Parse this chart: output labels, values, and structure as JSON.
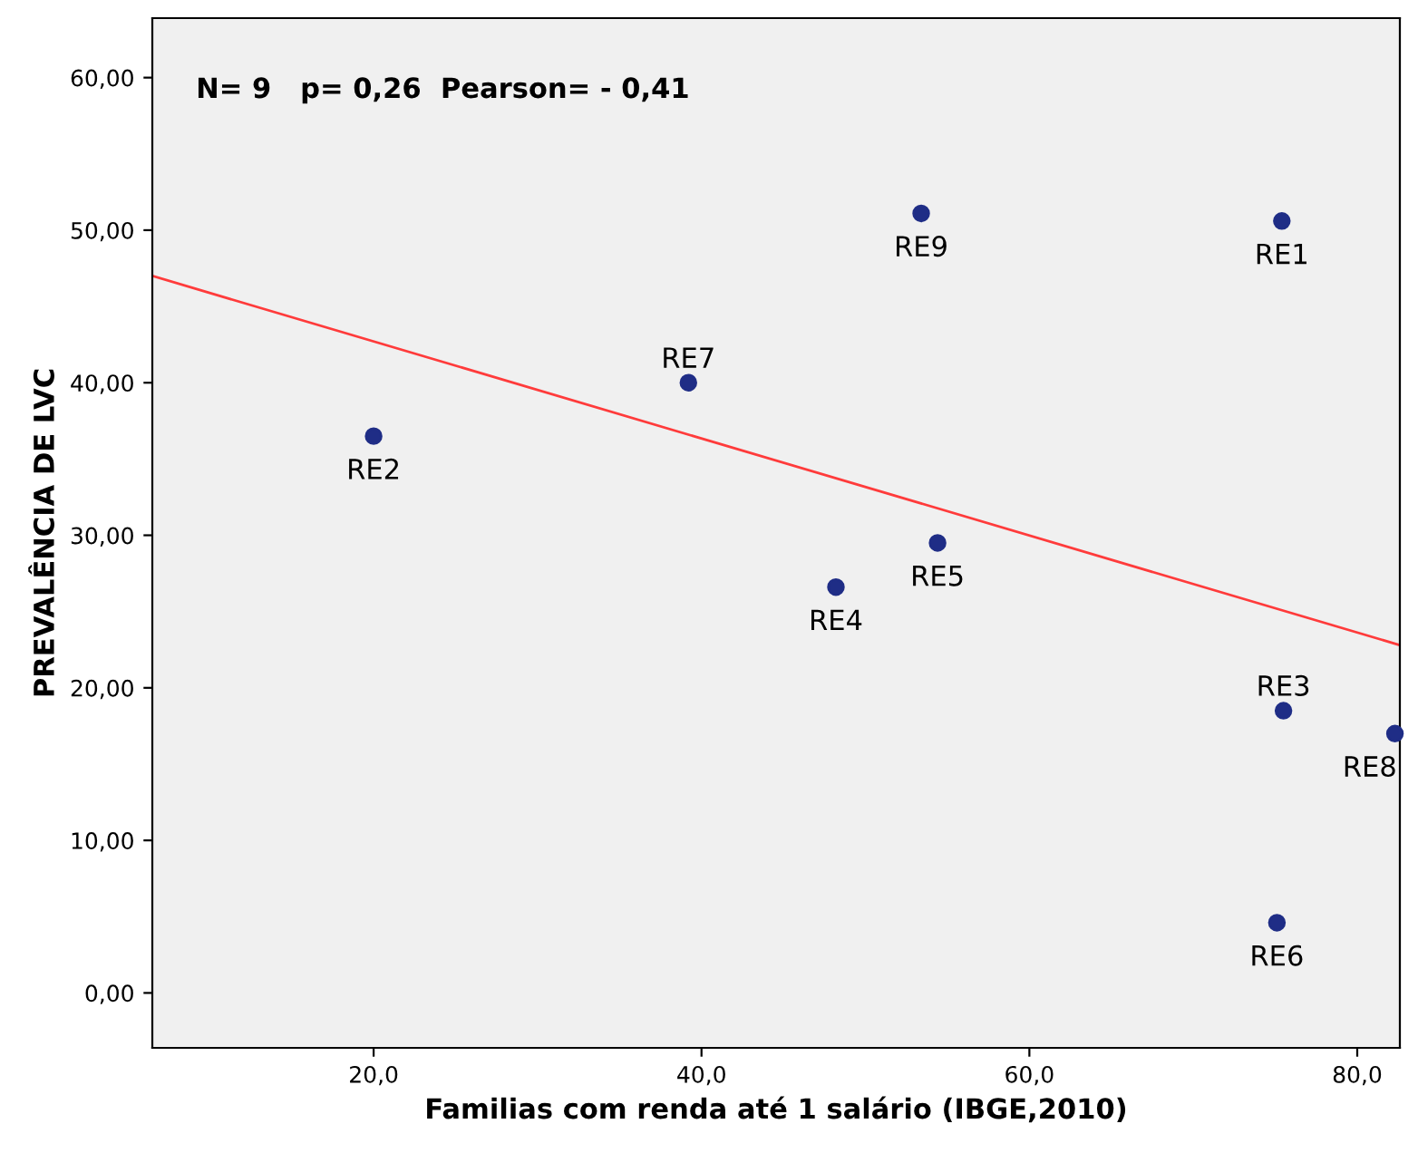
{
  "chart_data": {
    "type": "scatter",
    "xlabel": "Familias com renda até 1 salário (IBGE,2010)",
    "ylabel": "PREVALÊNCIA DE LVC",
    "series": [
      {
        "color": "#1f2d86",
        "marker": "circle",
        "x": [
          75.4,
          20.0,
          75.5,
          48.2,
          54.4,
          75.1,
          39.2,
          82.3,
          53.4
        ],
        "values": [
          50.6,
          36.5,
          18.5,
          26.6,
          29.5,
          4.6,
          40.0,
          17.0,
          51.1
        ]
      },
      {
        "type": "line",
        "color": "#ff3b3b",
        "x": [
          6.5,
          82.6
        ],
        "values": [
          47.0,
          22.8
        ]
      }
    ],
    "annotations": [
      "N= 9   p= 0,26  Pearson= - 0,41",
      {
        "text": "RE1",
        "x": 75.4,
        "y": 50.6
      },
      {
        "text": "RE2",
        "x": 20.0,
        "y": 36.5
      },
      {
        "text": "RE3",
        "x": 75.5,
        "y": 18.5
      },
      {
        "text": "RE4",
        "x": 48.2,
        "y": 26.6
      },
      {
        "text": "RE5",
        "x": 54.4,
        "y": 29.5
      },
      {
        "text": "RE6",
        "x": 75.1,
        "y": 4.6
      },
      {
        "text": "RE7",
        "x": 39.2,
        "y": 40.0
      },
      {
        "text": "RE8",
        "x": 82.3,
        "y": 17.0
      },
      {
        "text": "RE9",
        "x": 53.4,
        "y": 51.1
      }
    ],
    "xlim": [
      6.5,
      82.6
    ],
    "ylim": [
      -3.6,
      63.9
    ],
    "xticks": [
      {
        "value": 20,
        "label": "20,0"
      },
      {
        "value": 40,
        "label": "40,0"
      },
      {
        "value": 60,
        "label": "60,0"
      },
      {
        "value": 80,
        "label": "80,0"
      }
    ],
    "yticks": [
      {
        "value": 0,
        "label": "0,00"
      },
      {
        "value": 10,
        "label": "10,00"
      },
      {
        "value": 20,
        "label": "20,00"
      },
      {
        "value": 30,
        "label": "30,00"
      },
      {
        "value": 40,
        "label": "40,00"
      },
      {
        "value": 50,
        "label": "50,00"
      },
      {
        "value": 60,
        "label": "60,00"
      }
    ],
    "grid": false,
    "legend": false
  }
}
